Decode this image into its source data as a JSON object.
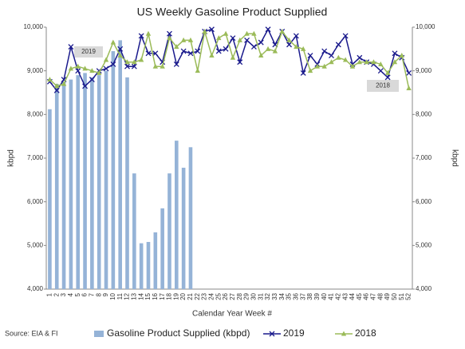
{
  "chart_data": {
    "type": "bar",
    "title": "US Weekly Gasoline Product Supplied",
    "x_label": "Calendar Year Week #",
    "y_label": "kbpd",
    "y2_label": "kbpd",
    "source": "Source: EIA & FI",
    "annotations": [
      "2019",
      "2018"
    ],
    "categories": [
      "1",
      "2",
      "3",
      "4",
      "5",
      "6",
      "7",
      "8",
      "9",
      "10",
      "11",
      "12",
      "13",
      "14",
      "15",
      "16",
      "17",
      "18",
      "19",
      "20",
      "21",
      "22",
      "23",
      "24",
      "25",
      "26",
      "27",
      "28",
      "29",
      "30",
      "31",
      "32",
      "33",
      "34",
      "35",
      "36",
      "37",
      "38",
      "39",
      "40",
      "41",
      "42",
      "43",
      "44",
      "45",
      "46",
      "47",
      "48",
      "49",
      "50",
      "51",
      "52"
    ],
    "series": [
      {
        "name": "Gasoline Product Supplied (kbpd)",
        "type": "bar",
        "color": "#95b3d7",
        "values": [
          8120,
          8700,
          8750,
          8800,
          8900,
          8950,
          8850,
          8900,
          9000,
          9450,
          9700,
          8850,
          6650,
          5050,
          5080,
          5300,
          5850,
          6650,
          7400,
          6780,
          7250,
          null,
          null,
          null,
          null,
          null,
          null,
          null,
          null,
          null,
          null,
          null,
          null,
          null,
          null,
          null,
          null,
          null,
          null,
          null,
          null,
          null,
          null,
          null,
          null,
          null,
          null,
          null,
          null,
          null,
          null,
          null
        ]
      },
      {
        "name": "2019",
        "type": "line",
        "axis": "y2",
        "color": "#1a1a8c",
        "marker": "x",
        "values": [
          8750,
          8550,
          8800,
          9550,
          9000,
          8650,
          8800,
          9000,
          9050,
          9150,
          9500,
          9100,
          9100,
          9800,
          9400,
          9400,
          9200,
          9850,
          9150,
          9450,
          9400,
          9450,
          9900,
          9950,
          9450,
          9500,
          9750,
          9200,
          9700,
          9550,
          9650,
          9950,
          9600,
          9900,
          9600,
          9800,
          8950,
          9350,
          9150,
          9450,
          9350,
          9600,
          9800,
          9150,
          9300,
          9200,
          9150,
          9000,
          8850,
          9400,
          9300,
          8950
        ]
      },
      {
        "name": "2018",
        "type": "line",
        "axis": "y2",
        "color": "#9bbb59",
        "marker": "triangle",
        "values": [
          8800,
          8650,
          8700,
          9050,
          9100,
          9050,
          9000,
          8950,
          9250,
          9650,
          9350,
          9200,
          9200,
          9250,
          9850,
          9100,
          9100,
          9750,
          9550,
          9700,
          9700,
          9000,
          9900,
          9350,
          9750,
          9850,
          9300,
          9700,
          9850,
          9850,
          9350,
          9500,
          9450,
          9900,
          9700,
          9550,
          9500,
          9000,
          9100,
          9100,
          9200,
          9300,
          9250,
          9100,
          9200,
          9200,
          9200,
          9150,
          8950,
          9200,
          9350,
          8600
        ]
      }
    ],
    "ylim": [
      4000,
      10000
    ],
    "yticks": [
      {
        "value": 4000,
        "label": "4,000"
      },
      {
        "value": 5000,
        "label": "5,000"
      },
      {
        "value": 6000,
        "label": "6,000"
      },
      {
        "value": 7000,
        "label": "7,000"
      },
      {
        "value": 8000,
        "label": "8,000"
      },
      {
        "value": 9000,
        "label": "9,000"
      },
      {
        "value": 10000,
        "label": "10,000"
      }
    ],
    "y2lim": [
      4000,
      10000
    ],
    "y2ticks": [
      {
        "value": 4000,
        "label": "4,000"
      },
      {
        "value": 5000,
        "label": "5,000"
      },
      {
        "value": 6000,
        "label": "6,000"
      },
      {
        "value": 7000,
        "label": "7,000"
      },
      {
        "value": 8000,
        "label": "8,000"
      },
      {
        "value": 9000,
        "label": "9,000"
      },
      {
        "value": 10000,
        "label": "10,000"
      }
    ],
    "grid": false
  }
}
